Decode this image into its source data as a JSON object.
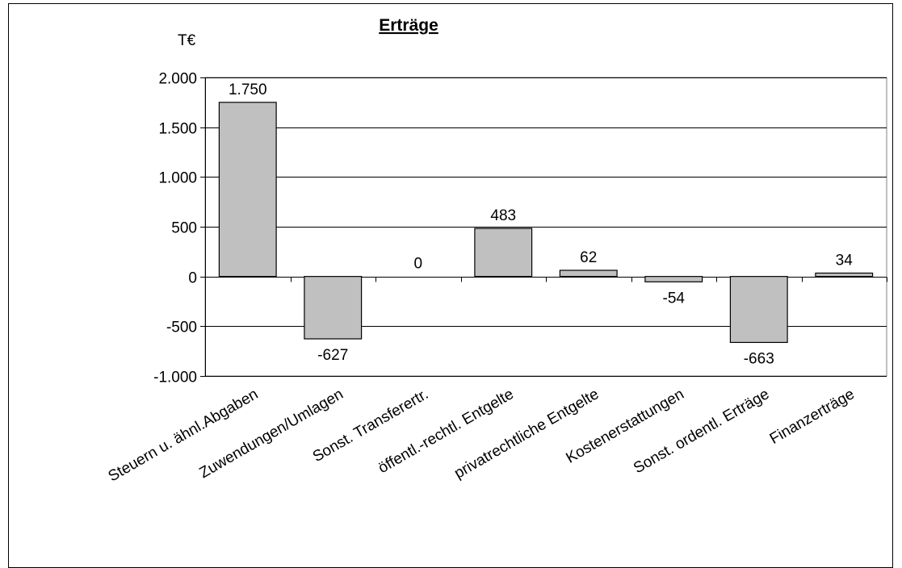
{
  "chart_data": {
    "type": "bar",
    "title": "Erträge",
    "unit": "T€",
    "categories": [
      "Steuern u. ähnl.Abgaben",
      "Zuwendungen/Umlagen",
      "Sonst. Transferertr.",
      "öffentl.-rechtl. Entgelte",
      "privatrechtliche Entgelte",
      "Kostenerstattungen",
      "Sonst. ordentl. Erträge",
      "Finanzerträge"
    ],
    "values": [
      1750,
      -627,
      0,
      483,
      62,
      -54,
      -663,
      34
    ],
    "data_labels": [
      "1.750",
      "-627",
      "0",
      "483",
      "62",
      "-54",
      "-663",
      "34"
    ],
    "ylim": [
      -1000,
      2000
    ],
    "yticks": [
      2000,
      1500,
      1000,
      500,
      0,
      -500,
      -1000
    ],
    "ytick_labels": [
      "2.000",
      "1.500",
      "1.000",
      "500",
      "0",
      "-500",
      "-1.000"
    ],
    "grid": true,
    "legend": "none",
    "bar_color": "#c0c0c0"
  }
}
